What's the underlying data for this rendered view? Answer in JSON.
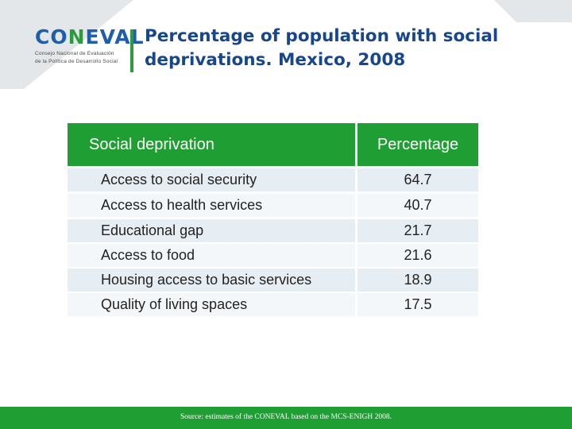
{
  "logo": {
    "wordmark_a": "CO",
    "wordmark_b": "N",
    "wordmark_c": "EVAL",
    "subtitle_line1": "Consejo Nacional de Evaluación",
    "subtitle_line2": "de la Política de Desarrollo Social"
  },
  "title": "Percentage of population with social deprivations. Mexico, 2008",
  "table": {
    "headers": [
      "Social deprivation",
      "Percentage"
    ],
    "rows": [
      {
        "label": "Access to social security",
        "value": "64.7"
      },
      {
        "label": "Access to health services",
        "value": "40.7"
      },
      {
        "label": "Educational gap",
        "value": "21.7"
      },
      {
        "label": "Access to food",
        "value": "21.6"
      },
      {
        "label": "Housing access to basic services",
        "value": "18.9"
      },
      {
        "label": "Quality of living spaces",
        "value": "17.5"
      }
    ]
  },
  "footer": {
    "source": "Source: estimates of the CONEVAL based on the MCS-ENIGH 2008."
  },
  "colors": {
    "green": "#1f9e33",
    "title_blue": "#17478a",
    "row_odd": "#e6eef4",
    "row_even": "#f4f7fa",
    "background_shape": "#e3e7ea"
  }
}
